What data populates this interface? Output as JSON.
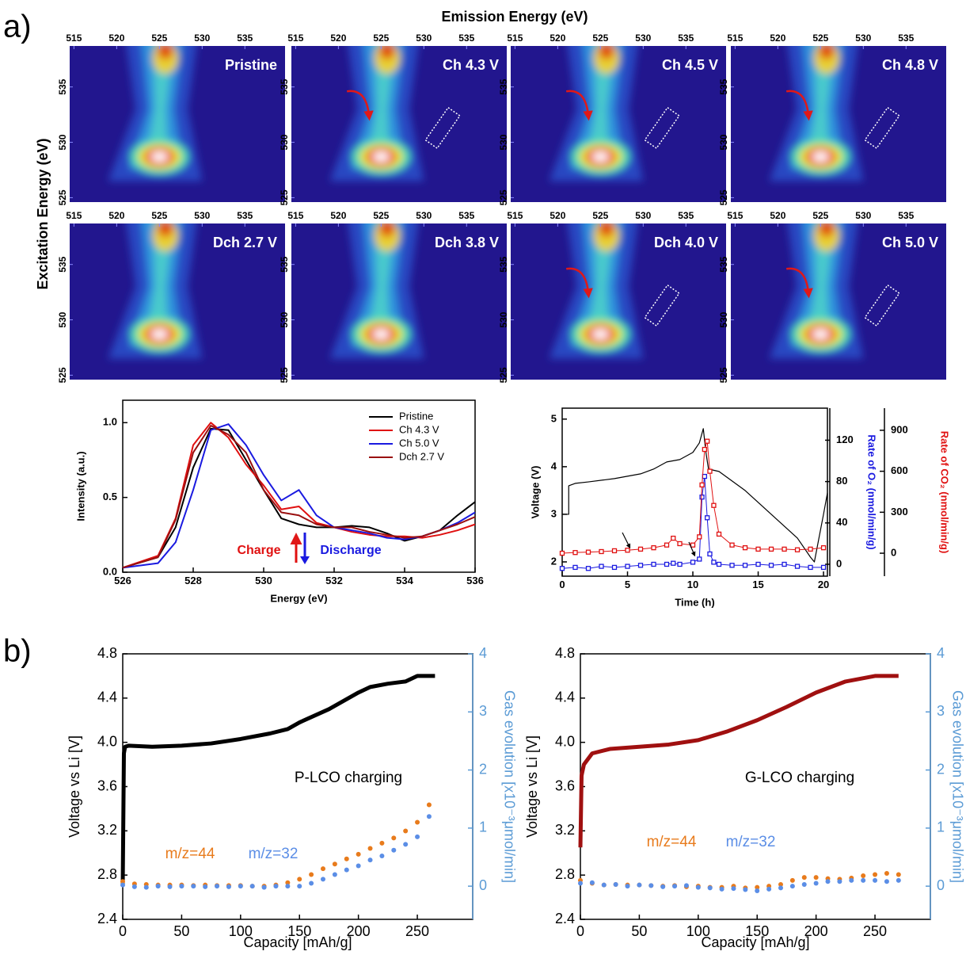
{
  "figure": {
    "panel_labels": [
      "a)",
      "b)"
    ],
    "rixs_xlabel": "Emission Energy (eV)",
    "rixs_ylabel": "Excitation Energy (eV)"
  },
  "chart_data": [
    {
      "type": "heatmap",
      "title": "Pristine",
      "arrow": false,
      "box": false,
      "xlim": [
        514.5,
        539.7
      ],
      "ylim": [
        524.6,
        538.7
      ],
      "xticks": [
        515,
        520,
        525,
        530,
        535
      ],
      "yticks": [
        525,
        530,
        535
      ]
    },
    {
      "type": "heatmap",
      "title": "Ch 4.3 V",
      "arrow": true,
      "box": true,
      "xlim": [
        514.5,
        539.7
      ],
      "ylim": [
        524.6,
        538.7
      ],
      "xticks": [
        515,
        520,
        525,
        530,
        535
      ],
      "yticks": [
        525,
        530,
        535
      ]
    },
    {
      "type": "heatmap",
      "title": "Ch 4.5 V",
      "arrow": true,
      "box": true,
      "xlim": [
        514.5,
        539.7
      ],
      "ylim": [
        524.6,
        538.7
      ],
      "xticks": [
        515,
        520,
        525,
        530,
        535
      ],
      "yticks": [
        525,
        530,
        535
      ]
    },
    {
      "type": "heatmap",
      "title": "Ch 4.8 V",
      "arrow": true,
      "box": true,
      "xlim": [
        514.5,
        539.7
      ],
      "ylim": [
        524.6,
        538.7
      ],
      "xticks": [
        515,
        520,
        525,
        530,
        535
      ],
      "yticks": [
        525,
        530,
        535
      ]
    },
    {
      "type": "heatmap",
      "title": "Dch 2.7 V",
      "arrow": false,
      "box": false,
      "xlim": [
        514.5,
        539.7
      ],
      "ylim": [
        524.6,
        538.7
      ],
      "xticks": [
        515,
        520,
        525,
        530,
        535
      ],
      "yticks": [
        525,
        530,
        535
      ]
    },
    {
      "type": "heatmap",
      "title": "Dch 3.8 V",
      "arrow": false,
      "box": false,
      "xlim": [
        514.5,
        539.7
      ],
      "ylim": [
        524.6,
        538.7
      ],
      "xticks": [
        515,
        520,
        525,
        530,
        535
      ],
      "yticks": [
        525,
        530,
        535
      ]
    },
    {
      "type": "heatmap",
      "title": "Dch 4.0 V",
      "arrow": true,
      "box": true,
      "xlim": [
        514.5,
        539.7
      ],
      "ylim": [
        524.6,
        538.7
      ],
      "xticks": [
        515,
        520,
        525,
        530,
        535
      ],
      "yticks": [
        525,
        530,
        535
      ]
    },
    {
      "type": "heatmap",
      "title": "Ch 5.0 V",
      "arrow": true,
      "box": true,
      "xlim": [
        514.5,
        539.7
      ],
      "ylim": [
        524.6,
        538.7
      ],
      "xticks": [
        515,
        520,
        525,
        530,
        535
      ],
      "yticks": [
        525,
        530,
        535
      ]
    },
    {
      "type": "line",
      "xlabel": "Energy (eV)",
      "ylabel": "Intensity (a.u.)",
      "legend": true,
      "x": [
        526,
        527,
        527.5,
        528,
        528.5,
        529,
        529.5,
        530,
        530.5,
        531,
        531.5,
        532,
        532.5,
        533,
        533.5,
        534,
        534.5,
        535,
        535.5,
        536
      ],
      "series": [
        {
          "name": "Pristine",
          "color": "#000000",
          "values": [
            0.03,
            0.1,
            0.3,
            0.7,
            0.96,
            0.95,
            0.75,
            0.55,
            0.36,
            0.32,
            0.3,
            0.3,
            0.31,
            0.3,
            0.26,
            0.21,
            0.24,
            0.28,
            0.38,
            0.47
          ]
        },
        {
          "name": "Ch 4.3 V",
          "color": "#e01010",
          "values": [
            0.03,
            0.11,
            0.36,
            0.85,
            1.0,
            0.9,
            0.72,
            0.58,
            0.42,
            0.44,
            0.33,
            0.3,
            0.27,
            0.25,
            0.24,
            0.24,
            0.23,
            0.25,
            0.28,
            0.32
          ]
        },
        {
          "name": "Ch 5.0 V",
          "color": "#1a1ae0",
          "values": [
            0.03,
            0.06,
            0.2,
            0.55,
            0.95,
            0.99,
            0.85,
            0.65,
            0.48,
            0.55,
            0.38,
            0.3,
            0.28,
            0.26,
            0.23,
            0.22,
            0.24,
            0.28,
            0.33,
            0.4
          ]
        },
        {
          "name": "Dch 2.7 V",
          "color": "#9a1010",
          "values": [
            0.03,
            0.1,
            0.35,
            0.8,
            0.98,
            0.92,
            0.8,
            0.55,
            0.4,
            0.38,
            0.32,
            0.3,
            0.3,
            0.27,
            0.25,
            0.23,
            0.24,
            0.28,
            0.32,
            0.37
          ]
        }
      ],
      "annotations": [
        {
          "text": "Charge",
          "color": "#e01010"
        },
        {
          "text": "Discharge",
          "color": "#1a1ae0"
        }
      ],
      "xlim": [
        526,
        536
      ],
      "xticks": [
        526,
        528,
        530,
        532,
        534,
        536
      ],
      "ylim": [
        0,
        1.15
      ],
      "yticks": [
        {
          "value": 0,
          "label": "0.0"
        },
        0.5,
        {
          "value": 1,
          "label": "1.0"
        }
      ]
    },
    {
      "type": "line",
      "xlabel": "Time (h)",
      "ylabel": "Voltage (V)",
      "y2label": "Rate of O₂ (nmol/min/g)",
      "y2color": "#1a1ae0",
      "y3label": "Rate of CO₂ (nmol/min/g)",
      "y3color": "#e01010",
      "series": [
        {
          "color": "#000000",
          "x": [
            0,
            0.5,
            0.5,
            1,
            2,
            4,
            6,
            7,
            8,
            9,
            10,
            10.5,
            10.8,
            11,
            11.2,
            12,
            14,
            16,
            18,
            19,
            19.3,
            20,
            20.3
          ],
          "values": [
            3.0,
            3.0,
            3.6,
            3.65,
            3.68,
            3.75,
            3.85,
            3.95,
            4.1,
            4.15,
            4.3,
            4.5,
            4.8,
            4.3,
            3.95,
            3.9,
            3.5,
            3.0,
            2.5,
            2.1,
            2.0,
            3.0,
            3.45
          ]
        },
        {
          "color": "#1a1ae0",
          "axis": "y2",
          "marker": "square",
          "x": [
            0,
            1,
            2,
            3,
            4,
            5,
            6,
            7,
            8,
            8.5,
            9,
            10,
            10.5,
            10.7,
            10.9,
            11.1,
            11.3,
            11.6,
            12,
            13,
            14,
            15,
            16,
            17,
            18,
            19,
            20
          ],
          "values": [
            -4,
            -3,
            -4,
            -2,
            -3,
            -2,
            -1,
            0,
            0,
            1,
            0,
            2,
            5,
            65,
            85,
            45,
            10,
            2,
            0,
            -1,
            -1,
            0,
            -1,
            0,
            -2,
            -3,
            -3
          ]
        },
        {
          "color": "#e01010",
          "axis": "y3",
          "marker": "square",
          "x": [
            0,
            1,
            2,
            3,
            4,
            5,
            6,
            7,
            8,
            8.5,
            9,
            10,
            10.5,
            10.7,
            10.9,
            11.1,
            11.3,
            11.6,
            12,
            13,
            14,
            15,
            16,
            17,
            18,
            19,
            20
          ],
          "values": [
            0,
            5,
            8,
            12,
            18,
            22,
            30,
            40,
            60,
            110,
            70,
            60,
            120,
            500,
            760,
            820,
            600,
            350,
            140,
            60,
            40,
            30,
            30,
            30,
            25,
            30,
            40
          ]
        }
      ],
      "xlim": [
        0,
        20.3
      ],
      "xticks": [
        0,
        5,
        10,
        15,
        20
      ],
      "ylim": [
        1.7,
        5.23
      ],
      "yticks": [
        2,
        3,
        4,
        5
      ],
      "y2lim": [
        -11.5,
        151
      ],
      "y2ticks": [
        0,
        40,
        80,
        120
      ],
      "y3lim": [
        -168,
        1062
      ],
      "y3ticks": [
        0,
        300,
        600,
        900
      ]
    },
    {
      "type": "line",
      "xlabel": "Capacity [mAh/g]",
      "ylabel": "Voltage vs Li [V]",
      "y2label": "Gas evolution [x10⁻³μmol/min]",
      "y2color": "#5b9bd5",
      "annotations": [
        {
          "text": "P-LCO charging",
          "color": "#000000"
        }
      ],
      "series": [
        {
          "color": "#000000",
          "x": [
            0,
            1,
            2,
            5,
            25,
            50,
            75,
            100,
            125,
            140,
            150,
            175,
            200,
            210,
            225,
            240,
            250,
            255,
            265
          ],
          "values": [
            2.7,
            3.9,
            3.96,
            3.97,
            3.96,
            3.97,
            3.99,
            4.03,
            4.08,
            4.12,
            4.18,
            4.3,
            4.45,
            4.5,
            4.53,
            4.55,
            4.6,
            4.6,
            4.6
          ]
        },
        {
          "name": "m/z=44",
          "color": "#e87b1c",
          "axis": "y2",
          "marker": "circle",
          "line": false,
          "x": [
            0,
            10,
            20,
            30,
            40,
            50,
            60,
            70,
            80,
            90,
            100,
            110,
            120,
            130,
            140,
            150,
            160,
            170,
            180,
            190,
            200,
            210,
            220,
            230,
            240,
            250,
            260
          ],
          "values": [
            0.08,
            0.04,
            0.03,
            0.02,
            0.02,
            0.02,
            0.01,
            0.02,
            0.01,
            0.01,
            0.01,
            0,
            0,
            0.02,
            0.06,
            0.12,
            0.2,
            0.3,
            0.38,
            0.47,
            0.55,
            0.65,
            0.74,
            0.83,
            0.95,
            1.1,
            1.4
          ]
        },
        {
          "name": "m/z=32",
          "color": "#5b8ee6",
          "axis": "y2",
          "marker": "circle",
          "line": false,
          "x": [
            0,
            10,
            20,
            30,
            40,
            50,
            60,
            70,
            80,
            90,
            100,
            110,
            120,
            130,
            140,
            150,
            160,
            170,
            180,
            190,
            200,
            210,
            220,
            230,
            240,
            250,
            260
          ],
          "values": [
            0.02,
            -0.01,
            -0.02,
            0,
            -0.01,
            0,
            0,
            -0.01,
            0,
            -0.01,
            0,
            0,
            -0.02,
            0,
            0,
            0,
            0.05,
            0.12,
            0.2,
            0.28,
            0.35,
            0.45,
            0.52,
            0.62,
            0.72,
            0.85,
            1.2
          ]
        }
      ],
      "xlim": [
        0,
        297
      ],
      "xticks": [
        0,
        50,
        100,
        150,
        200,
        250
      ],
      "ylim": [
        2.4,
        4.8
      ],
      "yticks": [
        2.4,
        2.8,
        3.2,
        3.6,
        {
          "value": 4,
          "label": "4.0"
        },
        4.4,
        4.8
      ],
      "y2lim": [
        -0.571,
        4
      ],
      "y2ticks": [
        0,
        1,
        2,
        3,
        4
      ]
    },
    {
      "type": "line",
      "xlabel": "Capacity [mAh/g]",
      "ylabel": "Voltage vs Li [V]",
      "y2label": "Gas evolution [x10⁻³μmol/min]",
      "y2color": "#5b9bd5",
      "annotations": [
        {
          "text": "G-LCO charging",
          "color": "#000000"
        }
      ],
      "series": [
        {
          "color": "#a01010",
          "x": [
            0,
            1,
            3,
            10,
            25,
            50,
            75,
            100,
            125,
            150,
            175,
            200,
            225,
            250,
            270
          ],
          "values": [
            3.05,
            3.7,
            3.8,
            3.9,
            3.94,
            3.96,
            3.98,
            4.02,
            4.1,
            4.2,
            4.32,
            4.45,
            4.55,
            4.6,
            4.6
          ]
        },
        {
          "name": "m/z=44",
          "color": "#e87b1c",
          "axis": "y2",
          "marker": "circle",
          "line": false,
          "x": [
            0,
            10,
            20,
            30,
            40,
            50,
            60,
            70,
            80,
            90,
            100,
            110,
            120,
            130,
            140,
            150,
            160,
            170,
            180,
            190,
            200,
            210,
            220,
            230,
            240,
            250,
            260,
            270
          ],
          "values": [
            0.1,
            0.05,
            0.02,
            0.03,
            0.02,
            0.02,
            0.01,
            0.0,
            0.01,
            -0.01,
            0,
            -0.02,
            -0.02,
            0,
            -0.03,
            -0.02,
            0,
            0.03,
            0.1,
            0.15,
            0.15,
            0.13,
            0.12,
            0.14,
            0.18,
            0.2,
            0.22,
            0.2
          ]
        },
        {
          "name": "m/z=32",
          "color": "#5b8ee6",
          "axis": "y2",
          "marker": "circle",
          "line": false,
          "x": [
            0,
            10,
            20,
            30,
            40,
            50,
            60,
            70,
            80,
            90,
            100,
            110,
            120,
            130,
            140,
            150,
            160,
            170,
            180,
            190,
            200,
            210,
            220,
            230,
            240,
            250,
            260,
            270
          ],
          "values": [
            0.05,
            0.06,
            0.02,
            0.03,
            0,
            0.02,
            0.01,
            -0.01,
            0,
            0.01,
            -0.02,
            -0.03,
            -0.05,
            -0.04,
            -0.06,
            -0.08,
            -0.05,
            -0.03,
            0.0,
            0.03,
            0.05,
            0.08,
            0.08,
            0.1,
            0.1,
            0.1,
            0.08,
            0.1
          ]
        }
      ],
      "xlim": [
        0,
        297
      ],
      "xticks": [
        0,
        50,
        100,
        150,
        200,
        250
      ],
      "ylim": [
        2.4,
        4.8
      ],
      "yticks": [
        2.4,
        2.8,
        3.2,
        3.6,
        {
          "value": 4,
          "label": "4.0"
        },
        4.4,
        4.8
      ],
      "y2lim": [
        -0.571,
        4
      ],
      "y2ticks": [
        0,
        1,
        2,
        3,
        4
      ]
    }
  ]
}
